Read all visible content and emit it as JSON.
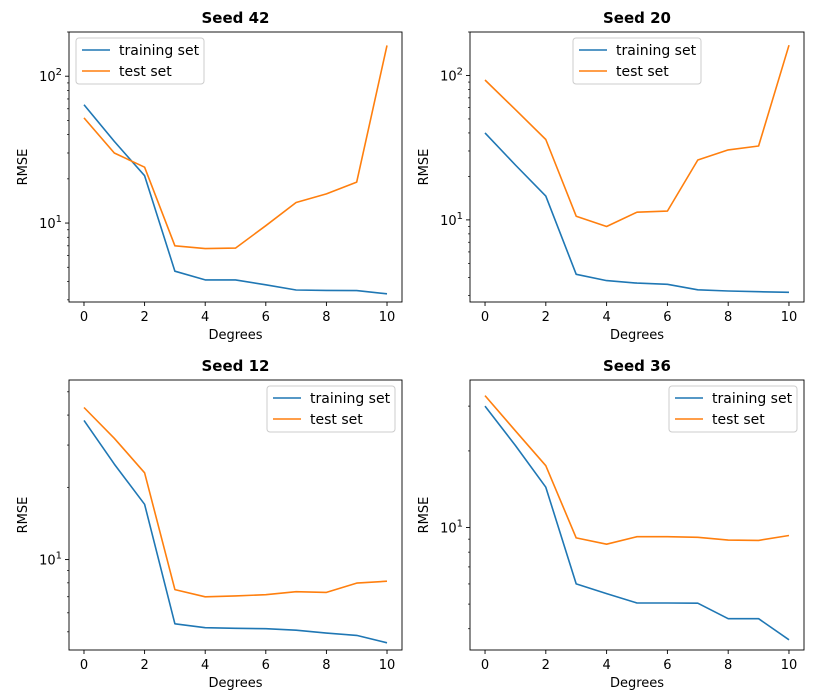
{
  "chart_data": [
    {
      "type": "line",
      "title": "Seed 42",
      "xlabel": "Degrees",
      "ylabel": "RMSE",
      "yscale": "log",
      "x": [
        0,
        1,
        2,
        3,
        4,
        5,
        6,
        7,
        8,
        9,
        10
      ],
      "xticks": [
        0,
        2,
        4,
        6,
        8,
        10
      ],
      "yticks": [
        10,
        100
      ],
      "yticklabels": [
        "10^1",
        "10^2"
      ],
      "ylim": [
        2.9,
        200
      ],
      "legend": "top-left",
      "series": [
        {
          "name": "training set",
          "color": "#1f77b4",
          "values": [
            64,
            36,
            21,
            4.7,
            4.1,
            4.1,
            3.8,
            3.5,
            3.48,
            3.47,
            3.3
          ]
        },
        {
          "name": "test set",
          "color": "#ff7f0e",
          "values": [
            52,
            30,
            24,
            7.0,
            6.7,
            6.75,
            9.6,
            13.8,
            15.8,
            19,
            162
          ]
        }
      ]
    },
    {
      "type": "line",
      "title": "Seed 20",
      "xlabel": "Degrees",
      "ylabel": "RMSE",
      "yscale": "log",
      "x": [
        0,
        1,
        2,
        3,
        4,
        5,
        6,
        7,
        8,
        9,
        10
      ],
      "xticks": [
        0,
        2,
        4,
        6,
        8,
        10
      ],
      "yticks": [
        10,
        100
      ],
      "yticklabels": [
        "10^1",
        "10^2"
      ],
      "ylim": [
        2.7,
        200
      ],
      "legend": "top-center",
      "series": [
        {
          "name": "training set",
          "color": "#1f77b4",
          "values": [
            40,
            24,
            14.6,
            4.2,
            3.8,
            3.65,
            3.58,
            3.28,
            3.22,
            3.18,
            3.15
          ]
        },
        {
          "name": "test set",
          "color": "#ff7f0e",
          "values": [
            93,
            58,
            36,
            10.6,
            9.0,
            11.3,
            11.5,
            26,
            30.5,
            32.5,
            162
          ]
        }
      ]
    },
    {
      "type": "line",
      "title": "Seed 12",
      "xlabel": "Degrees",
      "ylabel": "RMSE",
      "yscale": "log",
      "x": [
        0,
        1,
        2,
        3,
        4,
        5,
        6,
        7,
        8,
        9,
        10
      ],
      "xticks": [
        0,
        2,
        4,
        6,
        8,
        10
      ],
      "yticks": [
        10
      ],
      "yticklabels": [
        "10^1"
      ],
      "ylim": [
        4.2,
        56
      ],
      "legend": "top-right",
      "series": [
        {
          "name": "training set",
          "color": "#1f77b4",
          "values": [
            38,
            25,
            17,
            5.4,
            5.2,
            5.17,
            5.15,
            5.08,
            4.94,
            4.83,
            4.5
          ]
        },
        {
          "name": "test set",
          "color": "#ff7f0e",
          "values": [
            43,
            32,
            23,
            7.5,
            7.0,
            7.06,
            7.14,
            7.35,
            7.3,
            7.98,
            8.13
          ]
        }
      ]
    },
    {
      "type": "line",
      "title": "Seed 36",
      "xlabel": "Degrees",
      "ylabel": "RMSE",
      "yscale": "log",
      "x": [
        0,
        1,
        2,
        3,
        4,
        5,
        6,
        7,
        8,
        9,
        10
      ],
      "xticks": [
        0,
        2,
        4,
        6,
        8,
        10
      ],
      "yticks": [
        10
      ],
      "yticklabels": [
        "10^1"
      ],
      "ylim": [
        3.3,
        38
      ],
      "legend": "top-right",
      "series": [
        {
          "name": "training set",
          "color": "#1f77b4",
          "values": [
            30,
            21,
            14.4,
            6.0,
            5.5,
            5.05,
            5.05,
            5.04,
            4.38,
            4.38,
            3.62
          ]
        },
        {
          "name": "test set",
          "color": "#ff7f0e",
          "values": [
            33,
            24,
            17.5,
            9.1,
            8.6,
            9.2,
            9.2,
            9.15,
            8.92,
            8.9,
            9.3
          ]
        }
      ]
    }
  ]
}
